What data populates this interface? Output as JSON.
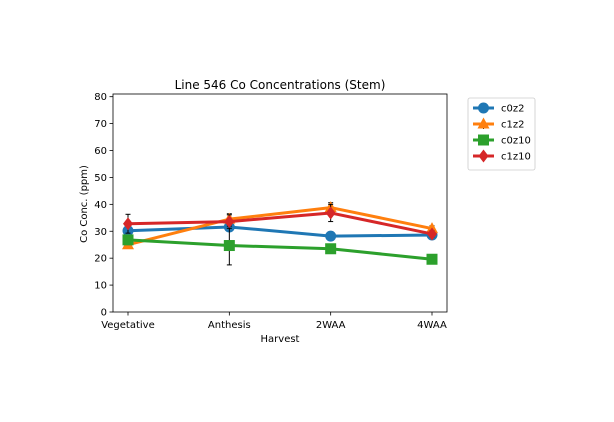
{
  "chart_data": {
    "type": "line",
    "title": "Line 546 Co Concentrations (Stem)",
    "xlabel": "Harvest",
    "ylabel": "Co Conc. (ppm)",
    "categories": [
      "Vegetative",
      "Anthesis",
      "2WAA",
      "4WAA"
    ],
    "ylim": [
      0,
      81
    ],
    "yticks": [
      0,
      10,
      20,
      30,
      40,
      50,
      60,
      70,
      80
    ],
    "grid": false,
    "legend_position": "outside-right",
    "series": [
      {
        "name": "c0z2",
        "color": "#1f77b4",
        "marker": "circle",
        "values": [
          30.2,
          31.6,
          28.2,
          28.6
        ],
        "errors": [
          0.8,
          1.0,
          0.6,
          0.6
        ]
      },
      {
        "name": "c1z2",
        "color": "#ff7f0e",
        "marker": "triangle",
        "values": [
          25.0,
          34.5,
          38.8,
          31.0
        ],
        "errors": [
          1.0,
          2.0,
          1.8,
          1.0
        ]
      },
      {
        "name": "c0z10",
        "color": "#2ca02c",
        "marker": "square",
        "values": [
          26.8,
          24.7,
          23.5,
          19.6
        ],
        "errors": [
          1.0,
          7.2,
          0.8,
          0.6
        ]
      },
      {
        "name": "c1z10",
        "color": "#d62728",
        "marker": "diamond",
        "values": [
          32.8,
          33.6,
          36.8,
          29.0
        ],
        "errors": [
          3.5,
          2.5,
          3.2,
          1.2
        ]
      }
    ]
  }
}
